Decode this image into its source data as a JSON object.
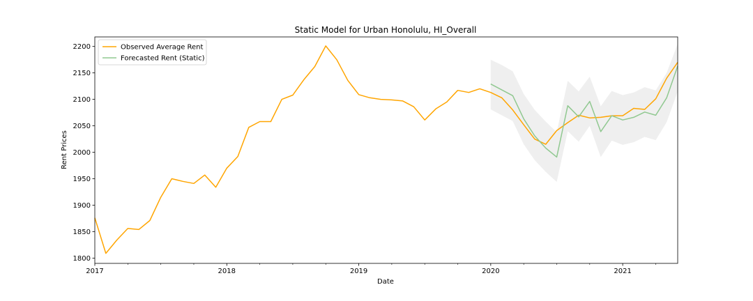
{
  "chart_data": {
    "type": "line",
    "title": "Static Model for Urban Honolulu, HI_Overall",
    "xlabel": "Date",
    "ylabel": "Rent Prices",
    "x_range": [
      "2017-01",
      "2021-06"
    ],
    "ylim": [
      1790,
      2218
    ],
    "y_ticks": [
      1800,
      1850,
      1900,
      1950,
      2000,
      2050,
      2100,
      2150,
      2200
    ],
    "x_ticks": [
      {
        "date": "2017-01",
        "label": "2017"
      },
      {
        "date": "2018-01",
        "label": "2018"
      },
      {
        "date": "2019-01",
        "label": "2019"
      },
      {
        "date": "2020-01",
        "label": "2020"
      },
      {
        "date": "2021-01",
        "label": "2021"
      }
    ],
    "grid": false,
    "legend_position": "top-left",
    "series": [
      {
        "name": "Observed Average Rent",
        "color": "#ffa500",
        "points": [
          [
            "2017-01",
            1876
          ],
          [
            "2017-02",
            1809
          ],
          [
            "2017-03",
            1834
          ],
          [
            "2017-04",
            1856
          ],
          [
            "2017-05",
            1854
          ],
          [
            "2017-06",
            1871
          ],
          [
            "2017-07",
            1915
          ],
          [
            "2017-08",
            1950
          ],
          [
            "2017-09",
            1945
          ],
          [
            "2017-10",
            1941
          ],
          [
            "2017-11",
            1957
          ],
          [
            "2017-12",
            1934
          ],
          [
            "2018-01",
            1970
          ],
          [
            "2018-02",
            1992
          ],
          [
            "2018-03",
            2047
          ],
          [
            "2018-04",
            2058
          ],
          [
            "2018-05",
            2058
          ],
          [
            "2018-06",
            2100
          ],
          [
            "2018-07",
            2108
          ],
          [
            "2018-08",
            2137
          ],
          [
            "2018-09",
            2162
          ],
          [
            "2018-10",
            2201
          ],
          [
            "2018-11",
            2175
          ],
          [
            "2018-12",
            2136
          ],
          [
            "2019-01",
            2109
          ],
          [
            "2019-02",
            2103
          ],
          [
            "2019-03",
            2100
          ],
          [
            "2019-04",
            2099
          ],
          [
            "2019-05",
            2097
          ],
          [
            "2019-06",
            2086
          ],
          [
            "2019-07",
            2061
          ],
          [
            "2019-08",
            2082
          ],
          [
            "2019-09",
            2095
          ],
          [
            "2019-10",
            2117
          ],
          [
            "2019-11",
            2113
          ],
          [
            "2019-12",
            2120
          ],
          [
            "2020-01",
            2113
          ],
          [
            "2020-02",
            2103
          ],
          [
            "2020-03",
            2080
          ],
          [
            "2020-04",
            2052
          ],
          [
            "2020-05",
            2025
          ],
          [
            "2020-06",
            2015
          ],
          [
            "2020-07",
            2041
          ],
          [
            "2020-08",
            2056
          ],
          [
            "2020-09",
            2070
          ],
          [
            "2020-10",
            2065
          ],
          [
            "2020-11",
            2066
          ],
          [
            "2020-12",
            2069
          ],
          [
            "2021-01",
            2069
          ],
          [
            "2021-02",
            2083
          ],
          [
            "2021-03",
            2081
          ],
          [
            "2021-04",
            2101
          ],
          [
            "2021-05",
            2140
          ],
          [
            "2021-06",
            2170
          ]
        ]
      },
      {
        "name": "Forecasted Rent (Static)",
        "color": "#90c890",
        "points": [
          [
            "2020-01",
            2129
          ],
          [
            "2020-02",
            2118
          ],
          [
            "2020-03",
            2107
          ],
          [
            "2020-04",
            2063
          ],
          [
            "2020-05",
            2031
          ],
          [
            "2020-06",
            2008
          ],
          [
            "2020-07",
            1991
          ],
          [
            "2020-08",
            2088
          ],
          [
            "2020-09",
            2067
          ],
          [
            "2020-10",
            2096
          ],
          [
            "2020-11",
            2039
          ],
          [
            "2020-12",
            2069
          ],
          [
            "2021-01",
            2061
          ],
          [
            "2021-02",
            2066
          ],
          [
            "2021-03",
            2076
          ],
          [
            "2021-04",
            2070
          ],
          [
            "2021-05",
            2103
          ],
          [
            "2021-06",
            2163
          ]
        ]
      }
    ],
    "confidence_band": {
      "color": "#e8e8e8",
      "points": [
        [
          "2020-01",
          2081,
          2175
        ],
        [
          "2020-02",
          2070,
          2165
        ],
        [
          "2020-03",
          2059,
          2153
        ],
        [
          "2020-04",
          2015,
          2110
        ],
        [
          "2020-05",
          1985,
          2080
        ],
        [
          "2020-06",
          1963,
          2058
        ],
        [
          "2020-07",
          1944,
          2038
        ],
        [
          "2020-08",
          2040,
          2135
        ],
        [
          "2020-09",
          2020,
          2115
        ],
        [
          "2020-10",
          2050,
          2143
        ],
        [
          "2020-11",
          1991,
          2087
        ],
        [
          "2020-12",
          2022,
          2116
        ],
        [
          "2021-01",
          2014,
          2108
        ],
        [
          "2021-02",
          2019,
          2113
        ],
        [
          "2021-03",
          2029,
          2123
        ],
        [
          "2021-04",
          2023,
          2117
        ],
        [
          "2021-05",
          2057,
          2150
        ],
        [
          "2021-06",
          2115,
          2205
        ]
      ]
    }
  }
}
